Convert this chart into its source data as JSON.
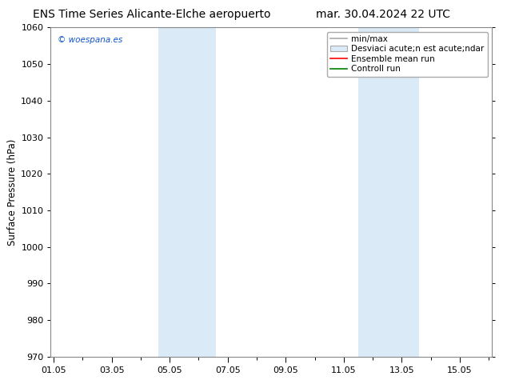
{
  "title_left": "ENS Time Series Alicante-Elche aeropuerto",
  "title_right": "mar. 30.04.2024 22 UTC",
  "ylabel": "Surface Pressure (hPa)",
  "ylim": [
    970,
    1060
  ],
  "yticks": [
    970,
    980,
    990,
    1000,
    1010,
    1020,
    1030,
    1040,
    1050,
    1060
  ],
  "xtick_labels": [
    "01.05",
    "03.05",
    "05.05",
    "07.05",
    "09.05",
    "11.05",
    "13.05",
    "15.05"
  ],
  "xtick_positions": [
    0,
    2,
    4,
    6,
    8,
    10,
    12,
    14
  ],
  "xlim": [
    -0.1,
    15.1
  ],
  "shaded_regions": [
    {
      "xstart": 3.6,
      "xend": 5.6,
      "color": "#daeaf7"
    },
    {
      "xstart": 10.5,
      "xend": 12.6,
      "color": "#daeaf7"
    }
  ],
  "watermark": "© woespana.es",
  "legend_line1_label": "min/max",
  "legend_line1_color": "#aaaaaa",
  "legend_box_label": "Desviaci acute;n est acute;ndar",
  "legend_box_color": "#daeaf7",
  "legend_line3_label": "Ensemble mean run",
  "legend_line3_color": "red",
  "legend_line4_label": "Controll run",
  "legend_line4_color": "green",
  "bg_color": "#ffffff",
  "plot_bg_color": "#ffffff",
  "title_fontsize": 10,
  "tick_fontsize": 8,
  "ylabel_fontsize": 8.5,
  "legend_fontsize": 7.5
}
